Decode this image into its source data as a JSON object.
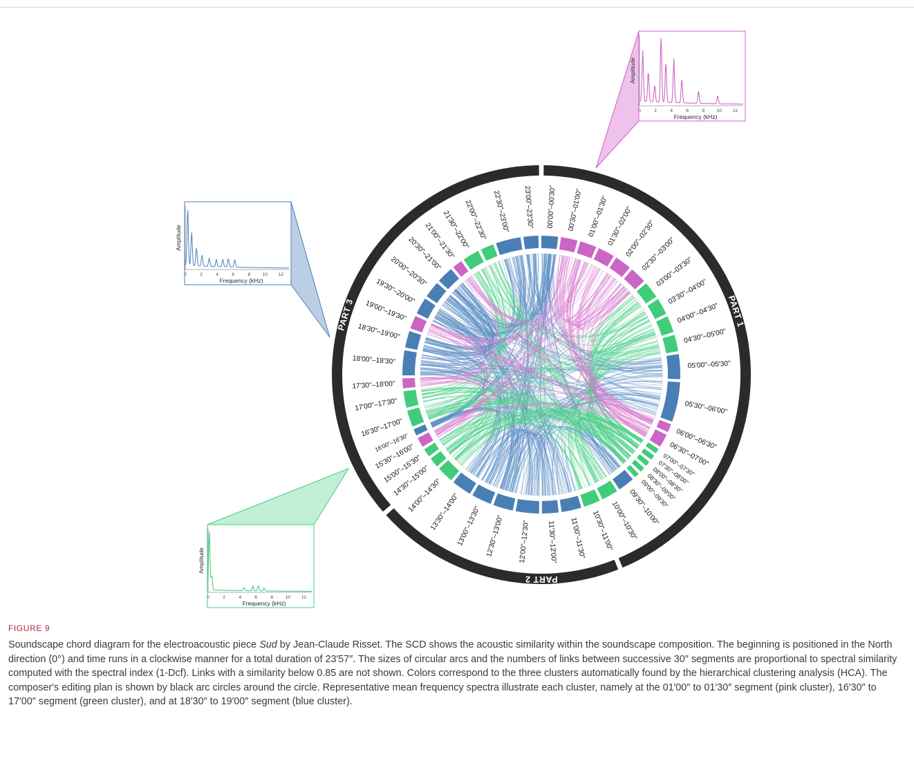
{
  "figure_label": "FIGURE 9",
  "caption": {
    "part1": "Soundscape chord diagram for the electroacoustic piece ",
    "title_italic": "Sud",
    "part2": " by Jean-Claude Risset. The SCD shows the acoustic similarity within the soundscape composition. The beginning is positioned in the North direction (0°) and time runs in a clockwise manner for a total duration of 23′57″. The sizes of circular arcs and the numbers of links between successive 30″ segments are proportional to spectral similarity computed with the spectral index (1-Dcf). Links with a similarity below 0.85 are not shown. Colors correspond to the three clusters automatically found by the hierarchical clustering analysis (HCA). The composer's editing plan is shown by black arc circles around the circle. Representative mean frequency spectra illustrate each cluster, namely at the 01′00″ to 01′30″ segment (pink cluster), 16′30″ to 17′00″ segment (green cluster), and at 18′30″ to 19′00″ segment (blue cluster)."
  },
  "colors": {
    "pink": "#cc66c6",
    "green": "#40cc7a",
    "blue": "#4a7fb5",
    "part_ring": "#2b2b2b"
  },
  "parts": [
    {
      "label": "PART 1",
      "start": 0,
      "end": 10.5
    },
    {
      "label": "PART 2",
      "start": 10.5,
      "end": 15.2
    },
    {
      "label": "PART 3",
      "start": 15.2,
      "end": 23.95
    }
  ],
  "segments": [
    {
      "label": "00'00\"–00'30\"",
      "cluster": "blue",
      "w": 1
    },
    {
      "label": "00'30\"–01'00\"",
      "cluster": "pink",
      "w": 1
    },
    {
      "label": "01'00\"–01'30\"",
      "cluster": "pink",
      "w": 1
    },
    {
      "label": "01'30\"–02'00\"",
      "cluster": "pink",
      "w": 1
    },
    {
      "label": "02'00\"–02'30\"",
      "cluster": "pink",
      "w": 1
    },
    {
      "label": "02'30\"–03'00\"",
      "cluster": "pink",
      "w": 1
    },
    {
      "label": "03'00\"–03'30\"",
      "cluster": "green",
      "w": 1
    },
    {
      "label": "03'30\"–04'00\"",
      "cluster": "green",
      "w": 1
    },
    {
      "label": "04'00\"–04'30\"",
      "cluster": "green",
      "w": 1
    },
    {
      "label": "04'30\"–05'00\"",
      "cluster": "green",
      "w": 1
    },
    {
      "label": "05'00\"–05'30\"",
      "cluster": "blue",
      "w": 1.5
    },
    {
      "label": "05'30\"–06'00\"",
      "cluster": "blue",
      "w": 2.4
    },
    {
      "label": "06'00\"–06'30\"",
      "cluster": "pink",
      "w": 0.5
    },
    {
      "label": "06'30\"–07'00\"",
      "cluster": "pink",
      "w": 0.8
    },
    {
      "label": "07'00\"–07'30\"",
      "cluster": "green",
      "w": 0.3
    },
    {
      "label": "07'30\"–08'00\"",
      "cluster": "green",
      "w": 0.3
    },
    {
      "label": "08'00\"–08'30\"",
      "cluster": "green",
      "w": 0.3
    },
    {
      "label": "08'30\"–09'00\"",
      "cluster": "green",
      "w": 0.3
    },
    {
      "label": "09'00\"–09'30\"",
      "cluster": "green",
      "w": 0.3
    },
    {
      "label": "09'30\"–10'00\"",
      "cluster": "blue",
      "w": 1
    },
    {
      "label": "10'00\"–10'30\"",
      "cluster": "green",
      "w": 1
    },
    {
      "label": "10'30\"–11'00\"",
      "cluster": "green",
      "w": 1
    },
    {
      "label": "11'00\"–11'30\"",
      "cluster": "blue",
      "w": 1.2
    },
    {
      "label": "11'30\"–12'00\"",
      "cluster": "blue",
      "w": 1
    },
    {
      "label": "12'00\"–12'30\"",
      "cluster": "blue",
      "w": 1.4
    },
    {
      "label": "12'30\"–13'00\"",
      "cluster": "blue",
      "w": 1.2
    },
    {
      "label": "13'00\"–13'30\"",
      "cluster": "blue",
      "w": 1.2
    },
    {
      "label": "13'30\"–14'00\"",
      "cluster": "blue",
      "w": 1.2
    },
    {
      "label": "14'00\"–14'30\"",
      "cluster": "green",
      "w": 1
    },
    {
      "label": "14'30\"–15'00\"",
      "cluster": "green",
      "w": 0.6
    },
    {
      "label": "15'00\"–15'30\"",
      "cluster": "green",
      "w": 0.5
    },
    {
      "label": "15'30\"–16'00\"",
      "cluster": "pink",
      "w": 0.6
    },
    {
      "label": "16'00\"–16'30\"",
      "cluster": "blue",
      "w": 0.4
    },
    {
      "label": "16'30\"–17'00\"",
      "cluster": "green",
      "w": 1
    },
    {
      "label": "17'00\"–17'30\"",
      "cluster": "green",
      "w": 1
    },
    {
      "label": "17'30\"–18'00\"",
      "cluster": "pink",
      "w": 0.6
    },
    {
      "label": "18'00\"–18'30\"",
      "cluster": "blue",
      "w": 1.5
    },
    {
      "label": "18'30\"–19'00\"",
      "cluster": "blue",
      "w": 1
    },
    {
      "label": "19'00\"–19'30\"",
      "cluster": "pink",
      "w": 0.8
    },
    {
      "label": "19'30\"–20'00\"",
      "cluster": "blue",
      "w": 1
    },
    {
      "label": "20'00\"–20'30\"",
      "cluster": "blue",
      "w": 1
    },
    {
      "label": "20'30\"–21'00\"",
      "cluster": "blue",
      "w": 1
    },
    {
      "label": "21'00\"–21'30\"",
      "cluster": "pink",
      "w": 0.6
    },
    {
      "label": "21'30\"–22'00\"",
      "cluster": "green",
      "w": 1
    },
    {
      "label": "22'00\"–22'30\"",
      "cluster": "green",
      "w": 0.8
    },
    {
      "label": "22'30\"–23'00\"",
      "cluster": "blue",
      "w": 1.5
    },
    {
      "label": "23'00\"–23'30\"",
      "cluster": "blue",
      "w": 0.9
    }
  ],
  "spectra": [
    {
      "cluster": "pink",
      "ylabel": "Amplitude",
      "xlabel": "Frequency (kHz)",
      "ticks": [
        "0",
        "2",
        "4",
        "6",
        "8",
        "10",
        "12"
      ],
      "peaks": [
        [
          0.4,
          0.75
        ],
        [
          1.1,
          0.45
        ],
        [
          1.9,
          0.25
        ],
        [
          2.7,
          1.0
        ],
        [
          3.3,
          0.6
        ],
        [
          4.3,
          0.65
        ],
        [
          5.3,
          0.35
        ],
        [
          7.4,
          0.18
        ],
        [
          9.8,
          0.12
        ]
      ],
      "floor": 0.06
    },
    {
      "cluster": "blue",
      "ylabel": "Amplitude",
      "xlabel": "Frequency (kHz)",
      "ticks": [
        "0",
        "2",
        "4",
        "6",
        "8",
        "10",
        "12"
      ],
      "peaks": [
        [
          0.3,
          0.95
        ],
        [
          0.8,
          0.55
        ],
        [
          1.4,
          0.3
        ],
        [
          2.1,
          0.18
        ],
        [
          3.0,
          0.14
        ],
        [
          3.9,
          0.12
        ],
        [
          4.7,
          0.12
        ],
        [
          5.4,
          0.14
        ],
        [
          6.2,
          0.12
        ]
      ],
      "floor": 0.06
    },
    {
      "cluster": "green",
      "ylabel": "Amplitude",
      "xlabel": "Frequency (kHz)",
      "ticks": [
        "0",
        "2",
        "4",
        "6",
        "8",
        "10",
        "12"
      ],
      "peaks": [
        [
          0.15,
          1.0
        ],
        [
          0.45,
          0.25
        ],
        [
          4.5,
          0.05
        ],
        [
          5.6,
          0.08
        ],
        [
          6.3,
          0.09
        ],
        [
          7.0,
          0.05
        ]
      ],
      "floor": 0.03
    }
  ]
}
